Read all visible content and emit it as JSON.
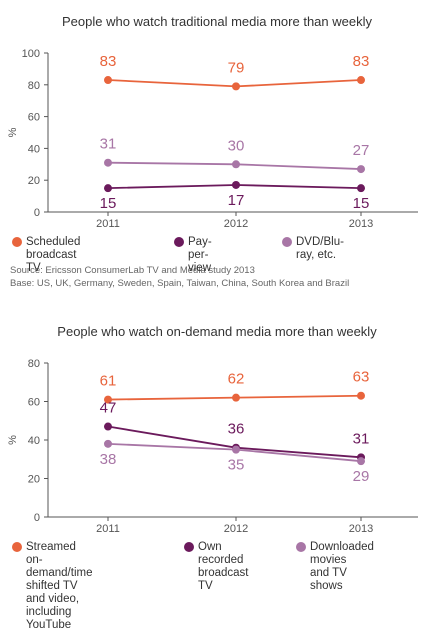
{
  "colors": {
    "orange": "#e8643c",
    "purple": "#6b1a5c",
    "lilac": "#a876a6",
    "axis": "#555555",
    "text": "#333333"
  },
  "source_lines": [
    "Source: Ericsson ConsumerLab TV and Media study 2013",
    "Base: US, UK, Germany, Sweden, Spain, Taiwan, China, South Korea and Brazil"
  ],
  "chart_data": [
    {
      "type": "line",
      "title": "People who watch traditional media more than weekly",
      "ylabel": "%",
      "xlabel": "",
      "x": [
        "2011",
        "2012",
        "2013"
      ],
      "ylim": [
        0,
        100
      ],
      "yticks": [
        0,
        20,
        40,
        60,
        80,
        100
      ],
      "series": [
        {
          "name": "Scheduled broadcast TV",
          "color": "#e8643c",
          "values": [
            83,
            79,
            83
          ],
          "labels": [
            "83",
            "79",
            "83"
          ]
        },
        {
          "name": "Pay-per-view",
          "color": "#6b1a5c",
          "values": [
            15,
            17,
            15
          ],
          "labels": [
            "15",
            "17",
            "15"
          ]
        },
        {
          "name": "DVD/Blu-ray, etc.",
          "color": "#a876a6",
          "values": [
            31,
            30,
            27
          ],
          "labels": [
            "31",
            "30",
            "27"
          ]
        }
      ]
    },
    {
      "type": "line",
      "title": "People who watch on-demand media more than weekly",
      "ylabel": "%",
      "xlabel": "",
      "x": [
        "2011",
        "2012",
        "2013"
      ],
      "ylim": [
        0,
        80
      ],
      "yticks": [
        0,
        20,
        40,
        60,
        80
      ],
      "series": [
        {
          "name": "Streamed on-demand/time shifted TV and video, including YouTube",
          "color": "#e8643c",
          "values": [
            61,
            62,
            63
          ],
          "labels": [
            "61",
            "62",
            "63"
          ]
        },
        {
          "name": "Own recorded broadcast TV",
          "color": "#6b1a5c",
          "values": [
            47,
            36,
            31
          ],
          "labels": [
            "47",
            "36",
            "31"
          ]
        },
        {
          "name": "Downloaded movies and TV shows",
          "color": "#a876a6",
          "values": [
            38,
            35,
            29
          ],
          "labels": [
            "38",
            "35",
            "29"
          ]
        }
      ]
    }
  ],
  "legends": [
    [
      {
        "lines": [
          "Scheduled broadcast TV"
        ]
      },
      {
        "lines": [
          "Pay-per-view"
        ]
      },
      {
        "lines": [
          "DVD/Blu-ray, etc."
        ]
      }
    ],
    [
      {
        "lines": [
          "Streamed on-demand/time",
          "shifted TV and video,",
          "including YouTube"
        ]
      },
      {
        "lines": [
          "Own recorded",
          "broadcast TV"
        ]
      },
      {
        "lines": [
          "Downloaded movies",
          "and TV shows"
        ]
      }
    ]
  ]
}
